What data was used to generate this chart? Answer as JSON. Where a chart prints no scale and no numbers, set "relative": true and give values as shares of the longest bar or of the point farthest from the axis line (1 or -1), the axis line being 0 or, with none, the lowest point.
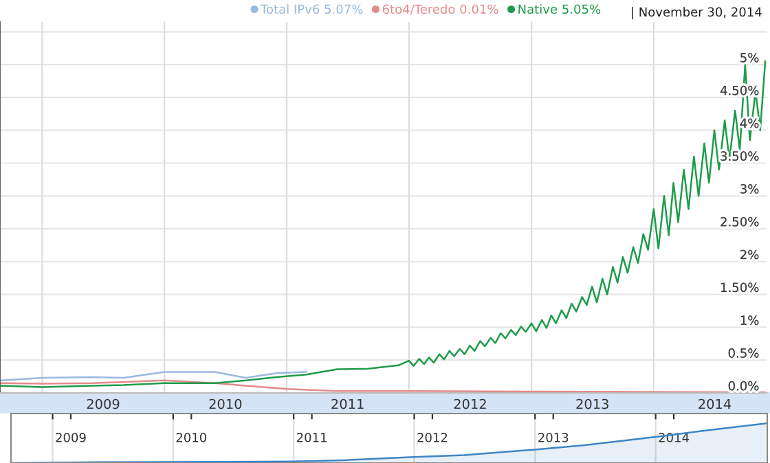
{
  "chart_data": [
    {
      "type": "line",
      "series": [
        {
          "name": "Total IPv6 5.07%",
          "color": "#9ab8e0",
          "x": [
            "2008-09-01",
            "2009-01-01",
            "2009-06-01",
            "2009-09-01",
            "2010-01-01",
            "2010-06-01",
            "2010-09-01",
            "2010-12-01",
            "2011-03-01"
          ],
          "values": [
            0.19,
            0.23,
            0.24,
            0.23,
            0.32,
            0.32,
            0.23,
            0.3,
            0.32
          ]
        },
        {
          "name": "6to4/Teredo 0.01%",
          "color": "#e38a8a",
          "x": [
            "2008-09-01",
            "2009-01-01",
            "2009-06-01",
            "2010-01-01",
            "2010-06-01",
            "2010-09-01",
            "2011-01-01",
            "2011-06-01",
            "2012-01-01",
            "2013-01-01",
            "2014-11-30"
          ],
          "values": [
            0.15,
            0.14,
            0.15,
            0.19,
            0.15,
            0.11,
            0.06,
            0.03,
            0.03,
            0.02,
            0.01
          ]
        },
        {
          "name": "Native 5.05%",
          "color": "#1e9b4b",
          "x": [
            "2008-09-01",
            "2009-01-01",
            "2009-06-01",
            "2009-09-01",
            "2010-01-01",
            "2010-06-01",
            "2010-09-01",
            "2010-12-01",
            "2011-03-01",
            "2011-06-01",
            "2011-09-01",
            "2011-12-01",
            "2012-01-01",
            "2012-01-15",
            "2012-02-01",
            "2012-02-15",
            "2012-03-01",
            "2012-03-15",
            "2012-04-01",
            "2012-04-15",
            "2012-05-01",
            "2012-05-15",
            "2012-06-01",
            "2012-06-15",
            "2012-07-01",
            "2012-07-15",
            "2012-08-01",
            "2012-08-15",
            "2012-09-01",
            "2012-09-15",
            "2012-10-01",
            "2012-10-15",
            "2012-11-01",
            "2012-11-15",
            "2012-12-01",
            "2012-12-15",
            "2013-01-01",
            "2013-01-15",
            "2013-02-01",
            "2013-02-15",
            "2013-03-01",
            "2013-03-15",
            "2013-04-01",
            "2013-04-15",
            "2013-05-01",
            "2013-05-15",
            "2013-06-01",
            "2013-06-15",
            "2013-07-01",
            "2013-07-15",
            "2013-08-01",
            "2013-08-15",
            "2013-09-01",
            "2013-09-15",
            "2013-10-01",
            "2013-10-15",
            "2013-11-01",
            "2013-11-15",
            "2013-12-01",
            "2013-12-15",
            "2014-01-01",
            "2014-01-15",
            "2014-02-01",
            "2014-02-15",
            "2014-03-01",
            "2014-03-15",
            "2014-04-01",
            "2014-04-15",
            "2014-05-01",
            "2014-05-15",
            "2014-06-01",
            "2014-06-15",
            "2014-07-01",
            "2014-07-15",
            "2014-08-01",
            "2014-08-15",
            "2014-09-01",
            "2014-09-15",
            "2014-10-01",
            "2014-10-15",
            "2014-11-01",
            "2014-11-15",
            "2014-11-30"
          ],
          "values": [
            0.11,
            0.09,
            0.11,
            0.12,
            0.15,
            0.15,
            0.19,
            0.24,
            0.28,
            0.36,
            0.37,
            0.42,
            0.49,
            0.41,
            0.52,
            0.44,
            0.54,
            0.46,
            0.59,
            0.51,
            0.64,
            0.56,
            0.67,
            0.59,
            0.72,
            0.64,
            0.79,
            0.71,
            0.84,
            0.76,
            0.91,
            0.83,
            0.96,
            0.88,
            1.01,
            0.93,
            1.06,
            0.94,
            1.11,
            0.99,
            1.18,
            1.06,
            1.26,
            1.14,
            1.36,
            1.24,
            1.46,
            1.34,
            1.62,
            1.38,
            1.74,
            1.5,
            1.92,
            1.68,
            2.07,
            1.83,
            2.22,
            1.98,
            2.42,
            2.18,
            2.8,
            2.2,
            3.0,
            2.4,
            3.2,
            2.6,
            3.4,
            2.8,
            3.6,
            3.0,
            3.8,
            3.2,
            4.0,
            3.4,
            4.15,
            3.55,
            4.3,
            3.7,
            5.0,
            3.85,
            4.6,
            4.0,
            5.05
          ]
        }
      ],
      "xlim": [
        "2008-08-28",
        "2014-12-05"
      ],
      "xticks": [
        {
          "value": "2009-01-01",
          "label": null
        },
        {
          "value": "2009-07-02",
          "label": "2009"
        },
        {
          "value": "2010-01-01",
          "label": null
        },
        {
          "value": "2010-07-02",
          "label": "2010"
        },
        {
          "value": "2011-01-01",
          "label": null
        },
        {
          "value": "2011-07-02",
          "label": "2011"
        },
        {
          "value": "2012-01-01",
          "label": null
        },
        {
          "value": "2012-07-02",
          "label": "2012"
        },
        {
          "value": "2013-01-01",
          "label": null
        },
        {
          "value": "2013-07-02",
          "label": "2013"
        },
        {
          "value": "2014-01-01",
          "label": null
        },
        {
          "value": "2014-07-02",
          "label": "2014"
        }
      ],
      "ylim": [
        0,
        5.65
      ],
      "yticks": [
        {
          "value": 0,
          "label": "0.0%"
        },
        {
          "value": 0.5,
          "label": "0.5%"
        },
        {
          "value": 1,
          "label": "1%"
        },
        {
          "value": 1.5,
          "label": "1.50%"
        },
        {
          "value": 2,
          "label": "2%"
        },
        {
          "value": 2.5,
          "label": "2.50%"
        },
        {
          "value": 3,
          "label": "3%"
        },
        {
          "value": 3.5,
          "label": "3.50%"
        },
        {
          "value": 4,
          "label": "4%"
        },
        {
          "value": 4.5,
          "label": "4.50%"
        },
        {
          "value": 5,
          "label": "5%"
        },
        {
          "value": 5.5,
          "label": null
        }
      ],
      "grid": true,
      "legend": "top right",
      "marker": "none",
      "annotations": [
        "| November 30, 2014"
      ]
    },
    {
      "type": "area",
      "relative": true,
      "color": "#3d85c6",
      "grid": "x",
      "x": [
        "2008-09-01",
        "2009-06-01",
        "2010-06-01",
        "2011-01-01",
        "2011-06-01",
        "2012-01-01",
        "2012-06-01",
        "2013-01-01",
        "2013-06-01",
        "2014-01-01",
        "2014-06-01",
        "2014-11-30"
      ],
      "values": [
        0,
        0.02,
        0.03,
        0.04,
        0.07,
        0.15,
        0.2,
        0.34,
        0.45,
        0.66,
        0.82,
        1.0
      ],
      "xlim": [
        "2008-08-28",
        "2014-12-05"
      ],
      "xticks": [
        {
          "value": "2009-01-01",
          "label": null
        },
        {
          "value": "2009-02-25",
          "label": "2009"
        },
        {
          "value": "2010-01-01",
          "label": null
        },
        {
          "value": "2010-02-25",
          "label": "2010"
        },
        {
          "value": "2011-01-01",
          "label": null
        },
        {
          "value": "2011-02-25",
          "label": "2011"
        },
        {
          "value": "2012-01-01",
          "label": null
        },
        {
          "value": "2012-02-25",
          "label": "2012"
        },
        {
          "value": "2013-01-01",
          "label": null
        },
        {
          "value": "2013-02-25",
          "label": "2013"
        },
        {
          "value": "2014-01-01",
          "label": null
        },
        {
          "value": "2014-02-25",
          "label": "2014"
        }
      ]
    }
  ]
}
